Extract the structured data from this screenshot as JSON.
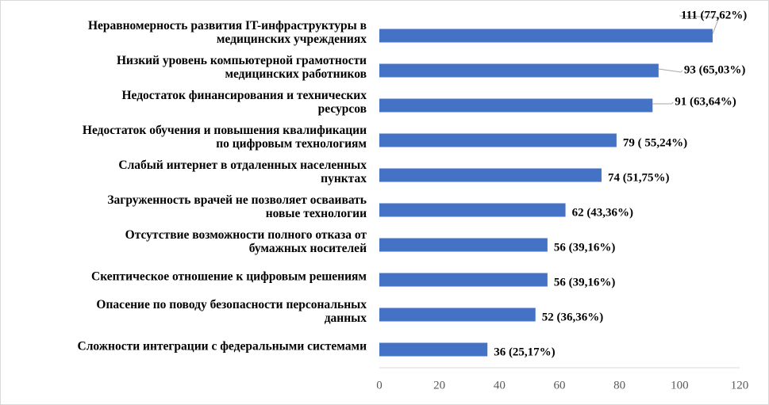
{
  "chart_data": {
    "type": "barh",
    "categories": [
      "Неравномерность развития IT-инфраструктуры в\nмедицинских учреждениях",
      "Низкий уровень компьютерной грамотности\nмедицинских работников",
      "Недостаток финансирования и технических\nресурсов",
      "Недостаток обучения и повышения квалификации\nпо цифровым технологиям",
      "Слабый интернет в отдаленных населенных\nпунктах",
      "Загруженность врачей не позволяет осваивать\nновые технологии",
      "Отсутствие возможности полного отказа от\nбумажных носителей",
      "Скептическое отношение к цифровым решениям",
      "Опасение по поводу безопасности персональных\nданных",
      "Сложности интеграции с федеральными системами"
    ],
    "values": [
      111,
      93,
      91,
      79,
      74,
      62,
      56,
      56,
      52,
      36
    ],
    "value_labels": [
      "111 (77,62%)",
      "93 (65,03%)",
      "91 (63,64%)",
      "79 ( 55,24%)",
      "74 (51,75%)",
      "62 (43,36%)",
      "56 (39,16%)",
      "56 (39,16%)",
      "52 (36,36%)",
      "36 (25,17%)"
    ],
    "color": "#4472c4",
    "xlim": [
      0,
      120
    ],
    "xticks": [
      0,
      20,
      40,
      60,
      80,
      100,
      120
    ],
    "grid": false
  }
}
